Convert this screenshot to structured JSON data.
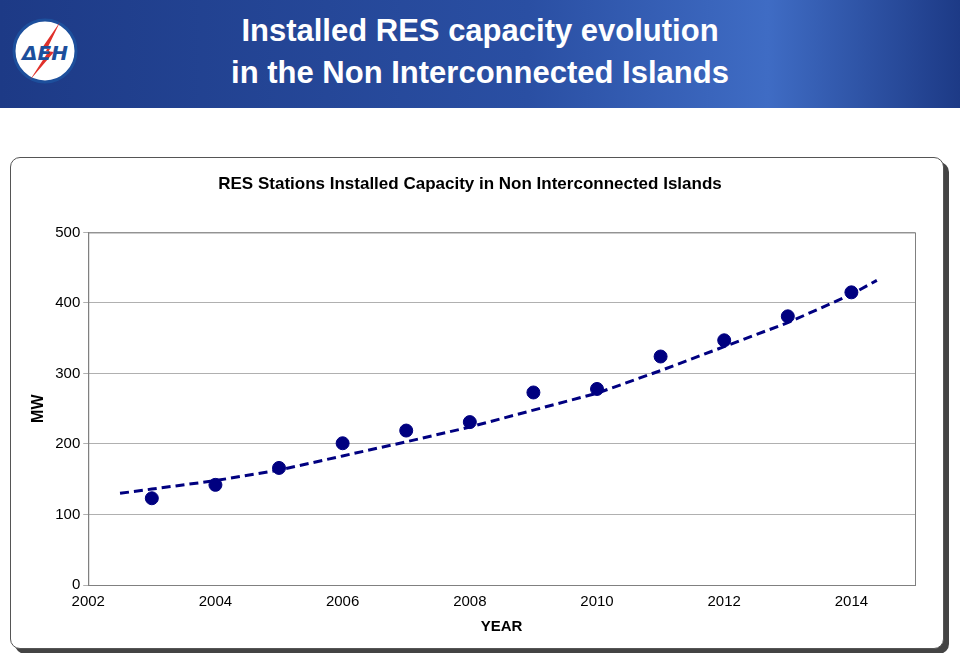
{
  "header": {
    "logo": "ΔΕΗ",
    "title": [
      "Installed RES capacity evolution",
      "in the Non Interconnected Islands"
    ]
  },
  "chart_data": {
    "type": "scatter",
    "title": "RES Stations Installed Capacity in Non Interconnected Islands",
    "x_label": "YEAR",
    "y_label": "MW",
    "xlim": [
      2002,
      2015
    ],
    "xticks": [
      2002,
      2004,
      2006,
      2008,
      2010,
      2012,
      2014
    ],
    "ylim": [
      0,
      500
    ],
    "yticks": [
      0,
      100,
      200,
      300,
      400,
      500
    ],
    "grid": "y",
    "series": [
      {
        "type": "scatter",
        "marker": "circle",
        "color": "#000080",
        "x": [
          2003,
          2004,
          2005,
          2006,
          2007,
          2008,
          2009,
          2010,
          2011,
          2012,
          2013,
          2014
        ],
        "values": [
          123,
          142,
          166,
          201,
          219,
          231,
          273,
          278,
          324,
          347,
          381,
          415
        ]
      },
      {
        "type": "line",
        "line_style": "dashed",
        "color": "#000080",
        "x": [
          2002.5,
          2003,
          2004,
          2005,
          2006,
          2007,
          2008,
          2009,
          2010,
          2011,
          2012,
          2013,
          2014,
          2014.4
        ],
        "values": [
          130,
          136,
          148,
          163,
          183,
          203,
          224,
          248,
          272,
          304,
          338,
          372,
          412,
          432
        ]
      }
    ]
  }
}
